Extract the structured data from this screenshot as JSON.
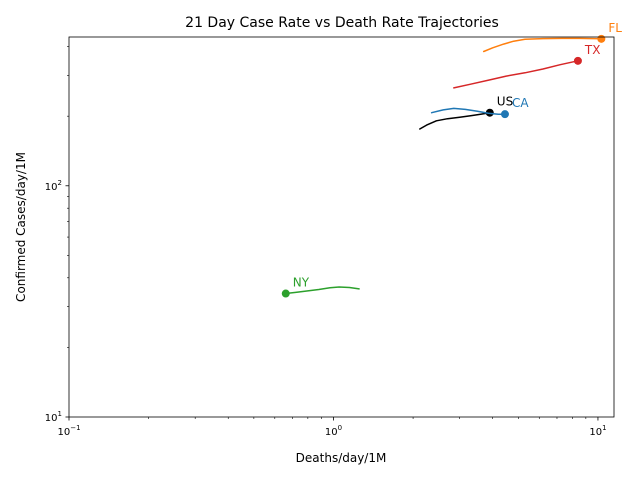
{
  "chart_data": {
    "type": "line",
    "title": "21 Day Case Rate vs Death Rate Trajectories",
    "xlabel": "Deaths/day/1M",
    "ylabel": "Confirmed Cases/day/1M",
    "xscale": "log",
    "yscale": "log",
    "xlim": [
      0.1,
      11.5
    ],
    "ylim": [
      10,
      440
    ],
    "xticks": [
      {
        "value": 0.1,
        "base": "10",
        "exp": "−1"
      },
      {
        "value": 1,
        "base": "10",
        "exp": "0"
      },
      {
        "value": 10,
        "base": "10",
        "exp": "1"
      }
    ],
    "yticks": [
      {
        "value": 10,
        "base": "10",
        "exp": "1"
      },
      {
        "value": 100,
        "base": "10",
        "exp": "2"
      }
    ],
    "grid": false,
    "legend": "none",
    "series": [
      {
        "name": "US",
        "color": "#000000",
        "x": [
          2.12,
          2.25,
          2.45,
          2.7,
          3.0,
          3.3,
          3.6,
          3.9
        ],
        "y": [
          176,
          183,
          191,
          195,
          198,
          201,
          204,
          207
        ]
      },
      {
        "name": "CA",
        "color": "#1f77b4",
        "x": [
          2.35,
          2.6,
          2.85,
          3.15,
          3.5,
          3.85,
          4.2,
          4.45
        ],
        "y": [
          207,
          213,
          216,
          214,
          210,
          206,
          204,
          204
        ]
      },
      {
        "name": "FL",
        "color": "#ff7f0e",
        "x": [
          3.7,
          4.0,
          4.4,
          4.8,
          5.3,
          6.2,
          7.3,
          8.5,
          10.3
        ],
        "y": [
          381,
          395,
          410,
          422,
          430,
          433,
          434,
          434,
          432
        ]
      },
      {
        "name": "TX",
        "color": "#d62728",
        "x": [
          2.85,
          3.3,
          3.9,
          4.5,
          5.3,
          6.2,
          7.2,
          8.4
        ],
        "y": [
          265,
          275,
          287,
          298,
          308,
          320,
          334,
          347
        ]
      },
      {
        "name": "NY",
        "color": "#2ca02c",
        "x": [
          1.25,
          1.15,
          1.05,
          0.97,
          0.88,
          0.8,
          0.72,
          0.66
        ],
        "y": [
          35.8,
          36.3,
          36.5,
          36.2,
          35.6,
          35.1,
          34.6,
          34.2
        ]
      }
    ]
  }
}
